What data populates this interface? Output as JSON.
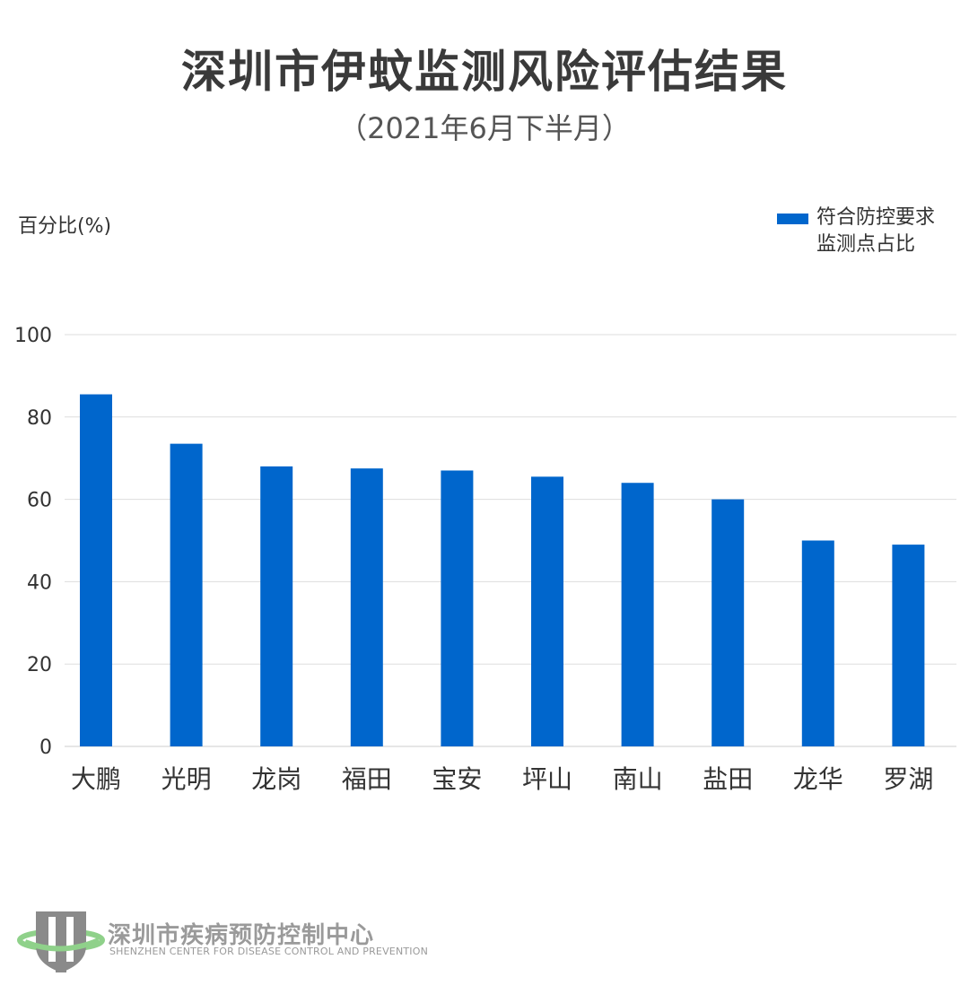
{
  "title": "深圳市伊蚊监测风险评估结果",
  "subtitle": "（2021年6月下半月）",
  "chart_data": {
    "type": "bar",
    "categories": [
      "大鹏",
      "光明",
      "龙岗",
      "福田",
      "宝安",
      "坪山",
      "南山",
      "盐田",
      "龙华",
      "罗湖"
    ],
    "series": [
      {
        "name": "符合防控要求监测点占比",
        "values": [
          85.5,
          73.5,
          68,
          67.5,
          67,
          65.5,
          64,
          60,
          50,
          49
        ]
      }
    ],
    "ylabel": "百分比(%)",
    "xlabel": "",
    "ylim": [
      0,
      100
    ],
    "yticks": [
      0,
      20,
      40,
      60,
      80,
      100
    ],
    "grid": true,
    "legend_position": "top-right",
    "bar_color": "#0066CC",
    "grid_color": "#DDDDDD"
  },
  "legend": {
    "line1": "符合防控要求",
    "line2": "监测点占比"
  },
  "footer": {
    "org_cn": "深圳市疾病预防控制中心",
    "org_en": "SHENZHEN CENTER FOR DISEASE CONTROL AND PREVENTION",
    "logo_icon": "shenzhen-cdc-shield-logo"
  }
}
